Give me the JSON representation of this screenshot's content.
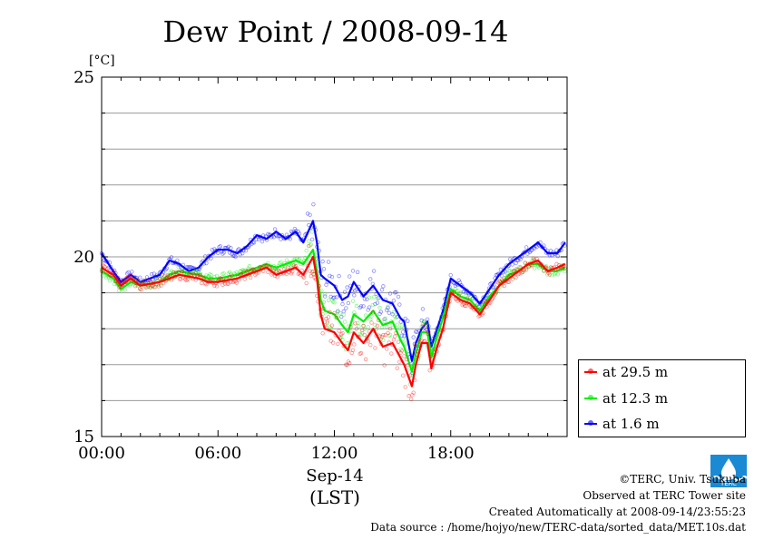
{
  "chart_data": {
    "type": "line",
    "title": "Dew Point / 2008-09-14",
    "ylabel": "[°C]",
    "xlabel": "Sep-14",
    "xlabel2": "(LST)",
    "ylim": [
      15,
      25
    ],
    "yticks": [
      15,
      20,
      25
    ],
    "xlim": [
      0,
      24
    ],
    "xticks": [
      {
        "hour": 0,
        "label": "00:00"
      },
      {
        "hour": 6,
        "label": "06:00"
      },
      {
        "hour": 12,
        "label": "12:00"
      },
      {
        "hour": 18,
        "label": "18:00"
      }
    ],
    "grid": true,
    "legend": "bottom-right",
    "series": [
      {
        "name": "at 29.5 m",
        "color": "#ff0000",
        "points": [
          [
            0,
            19.7
          ],
          [
            0.6,
            19.5
          ],
          [
            1,
            19.2
          ],
          [
            1.5,
            19.4
          ],
          [
            2,
            19.2
          ],
          [
            3,
            19.3
          ],
          [
            3.5,
            19.4
          ],
          [
            4,
            19.5
          ],
          [
            5,
            19.4
          ],
          [
            5.5,
            19.3
          ],
          [
            6,
            19.3
          ],
          [
            7,
            19.4
          ],
          [
            7.5,
            19.5
          ],
          [
            8,
            19.6
          ],
          [
            8.5,
            19.7
          ],
          [
            9,
            19.5
          ],
          [
            9.5,
            19.6
          ],
          [
            10,
            19.7
          ],
          [
            10.4,
            19.5
          ],
          [
            10.9,
            20.0
          ],
          [
            11.1,
            19.4
          ],
          [
            11.3,
            18.4
          ],
          [
            11.5,
            18.0
          ],
          [
            12,
            17.9
          ],
          [
            12.4,
            17.6
          ],
          [
            12.7,
            17.4
          ],
          [
            13,
            17.9
          ],
          [
            13.5,
            17.6
          ],
          [
            14,
            18.0
          ],
          [
            14.5,
            17.5
          ],
          [
            15,
            17.6
          ],
          [
            15.4,
            17.2
          ],
          [
            15.6,
            17.0
          ],
          [
            16,
            16.4
          ],
          [
            16.2,
            17.0
          ],
          [
            16.5,
            17.6
          ],
          [
            16.8,
            17.6
          ],
          [
            17,
            16.9
          ],
          [
            17.3,
            17.5
          ],
          [
            17.6,
            18.0
          ],
          [
            18,
            19.0
          ],
          [
            18.5,
            18.8
          ],
          [
            19,
            18.7
          ],
          [
            19.5,
            18.4
          ],
          [
            20,
            18.8
          ],
          [
            20.5,
            19.2
          ],
          [
            21,
            19.4
          ],
          [
            21.5,
            19.6
          ],
          [
            22,
            19.8
          ],
          [
            22.5,
            19.9
          ],
          [
            23,
            19.6
          ],
          [
            23.5,
            19.7
          ],
          [
            23.9,
            19.8
          ]
        ]
      },
      {
        "name": "at 12.3 m",
        "color": "#00ee00",
        "points": [
          [
            0,
            19.6
          ],
          [
            0.6,
            19.4
          ],
          [
            1,
            19.1
          ],
          [
            1.5,
            19.3
          ],
          [
            2,
            19.2
          ],
          [
            3,
            19.3
          ],
          [
            3.5,
            19.5
          ],
          [
            4,
            19.6
          ],
          [
            5,
            19.5
          ],
          [
            5.5,
            19.4
          ],
          [
            6,
            19.4
          ],
          [
            7,
            19.5
          ],
          [
            7.5,
            19.6
          ],
          [
            8,
            19.7
          ],
          [
            8.5,
            19.8
          ],
          [
            9,
            19.7
          ],
          [
            9.5,
            19.8
          ],
          [
            10,
            19.9
          ],
          [
            10.4,
            19.8
          ],
          [
            10.9,
            20.2
          ],
          [
            11.1,
            19.6
          ],
          [
            11.3,
            18.8
          ],
          [
            11.5,
            18.5
          ],
          [
            12,
            18.4
          ],
          [
            12.4,
            18.1
          ],
          [
            12.7,
            17.9
          ],
          [
            13,
            18.4
          ],
          [
            13.5,
            18.2
          ],
          [
            14,
            18.5
          ],
          [
            14.5,
            18.1
          ],
          [
            15,
            18.2
          ],
          [
            15.4,
            17.7
          ],
          [
            15.6,
            17.5
          ],
          [
            16,
            16.8
          ],
          [
            16.2,
            17.3
          ],
          [
            16.5,
            17.9
          ],
          [
            16.8,
            17.9
          ],
          [
            17,
            17.2
          ],
          [
            17.3,
            17.8
          ],
          [
            17.6,
            18.3
          ],
          [
            18,
            19.1
          ],
          [
            18.5,
            18.9
          ],
          [
            19,
            18.8
          ],
          [
            19.5,
            18.5
          ],
          [
            20,
            18.9
          ],
          [
            20.5,
            19.2
          ],
          [
            21,
            19.5
          ],
          [
            21.5,
            19.6
          ],
          [
            22,
            19.8
          ],
          [
            22.5,
            19.8
          ],
          [
            23,
            19.6
          ],
          [
            23.5,
            19.6
          ],
          [
            23.9,
            19.7
          ]
        ]
      },
      {
        "name": "at 1.6 m",
        "color": "#0000ff",
        "points": [
          [
            0,
            20.1
          ],
          [
            0.6,
            19.6
          ],
          [
            1,
            19.3
          ],
          [
            1.5,
            19.5
          ],
          [
            2,
            19.3
          ],
          [
            3,
            19.5
          ],
          [
            3.5,
            19.9
          ],
          [
            4,
            19.8
          ],
          [
            4.5,
            19.6
          ],
          [
            5,
            19.7
          ],
          [
            5.5,
            20.0
          ],
          [
            6,
            20.2
          ],
          [
            6.5,
            20.2
          ],
          [
            7,
            20.1
          ],
          [
            7.5,
            20.3
          ],
          [
            8,
            20.6
          ],
          [
            8.5,
            20.5
          ],
          [
            9,
            20.7
          ],
          [
            9.5,
            20.5
          ],
          [
            10,
            20.7
          ],
          [
            10.4,
            20.4
          ],
          [
            10.9,
            21.0
          ],
          [
            11.1,
            20.4
          ],
          [
            11.3,
            19.5
          ],
          [
            11.5,
            19.4
          ],
          [
            12,
            19.2
          ],
          [
            12.4,
            18.8
          ],
          [
            12.7,
            18.9
          ],
          [
            13,
            19.3
          ],
          [
            13.5,
            18.9
          ],
          [
            14,
            19.2
          ],
          [
            14.5,
            18.8
          ],
          [
            15,
            18.7
          ],
          [
            15.4,
            18.3
          ],
          [
            15.6,
            18.2
          ],
          [
            16,
            17.1
          ],
          [
            16.2,
            17.6
          ],
          [
            16.5,
            18.0
          ],
          [
            16.8,
            18.2
          ],
          [
            17,
            17.5
          ],
          [
            17.3,
            18.0
          ],
          [
            17.6,
            18.5
          ],
          [
            18,
            19.4
          ],
          [
            18.5,
            19.2
          ],
          [
            19,
            19.0
          ],
          [
            19.5,
            18.7
          ],
          [
            20,
            19.1
          ],
          [
            20.5,
            19.5
          ],
          [
            21,
            19.8
          ],
          [
            21.5,
            20.0
          ],
          [
            22,
            20.2
          ],
          [
            22.5,
            20.4
          ],
          [
            23,
            20.1
          ],
          [
            23.5,
            20.1
          ],
          [
            23.9,
            20.4
          ]
        ]
      }
    ]
  },
  "footer": {
    "copyright": "©TERC, Univ. Tsukuba",
    "observed": "Observed at TERC Tower site",
    "created": "Created Automatically at 2008-09-14/23:55:23",
    "source": "Data source : /home/hojyo/new/TERC-data/sorted_data/MET.10s.dat",
    "logo_text": "TERC"
  }
}
